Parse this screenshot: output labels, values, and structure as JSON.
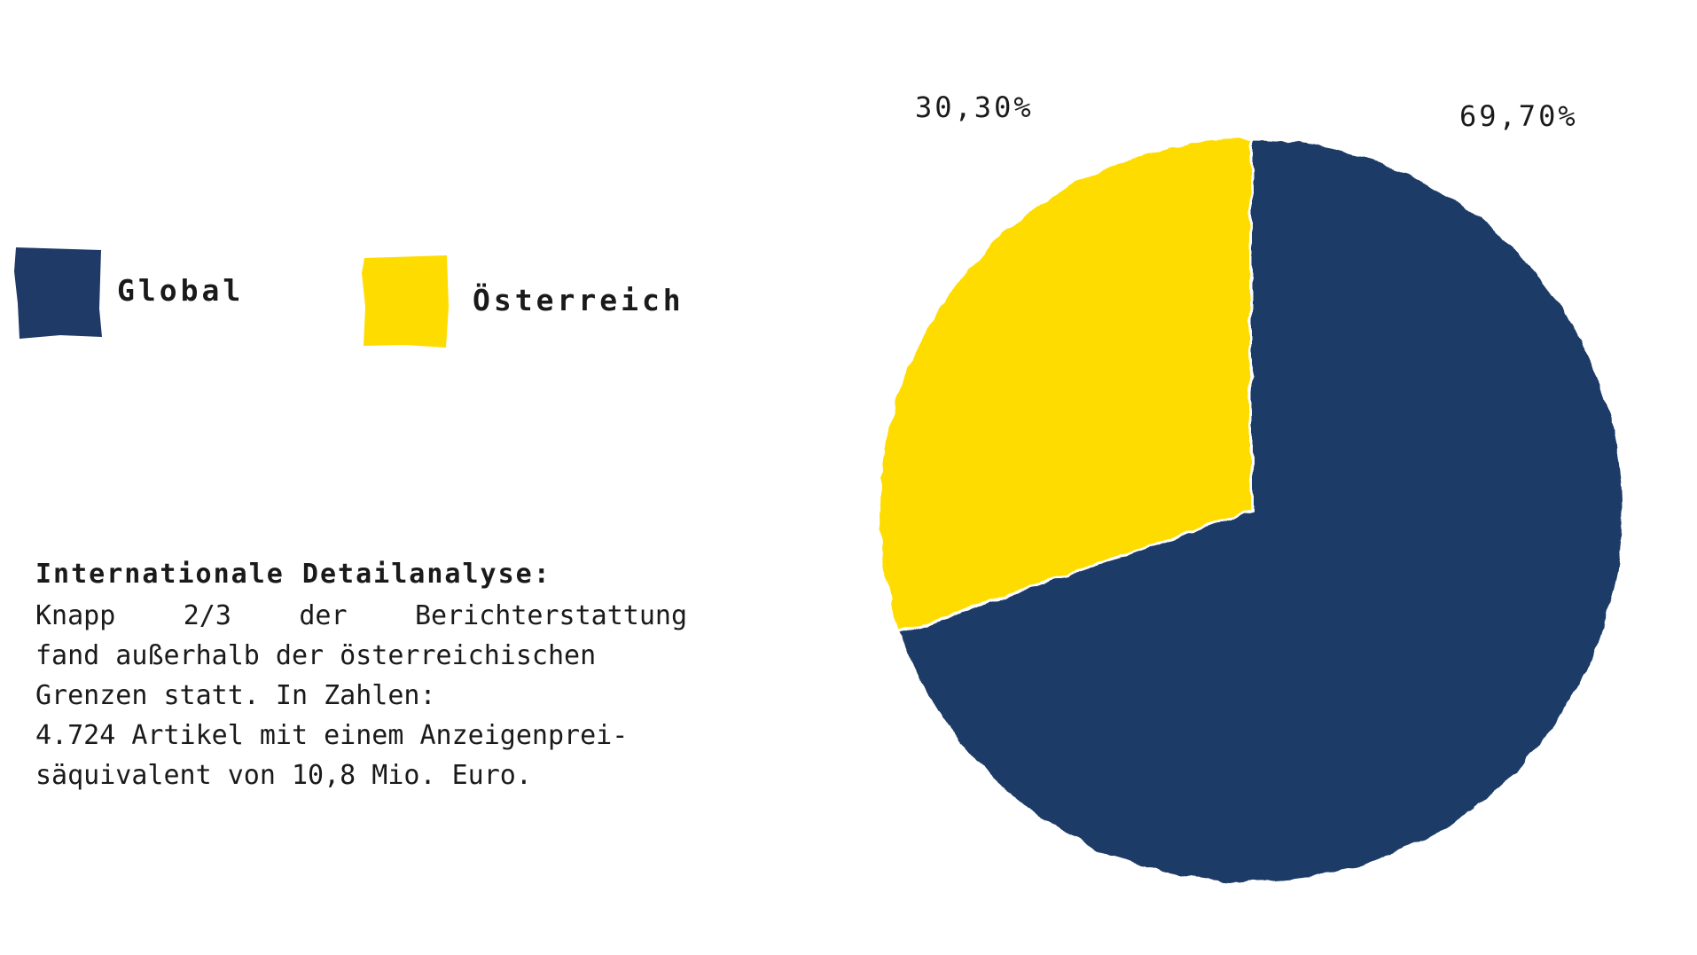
{
  "colors": {
    "global": "#1f3a66",
    "oesterreich": "#ffdc00",
    "text": "#1a1a1a",
    "background": "#ffffff"
  },
  "legend": {
    "global": "Global",
    "oesterreich": "Österreich"
  },
  "description": {
    "heading": "Internationale Detailanalyse:",
    "line1_words": [
      "Knapp",
      "2/3",
      "der",
      "Berichterstattung"
    ],
    "line2": "fand außerhalb der österreichischen",
    "line3": "Grenzen statt. In Zahlen:",
    "line4": "4.724 Artikel mit einem Anzeigenprei-",
    "line5": "säquivalent von 10,8 Mio. Euro."
  },
  "chart_data": {
    "type": "pie",
    "categories": [
      "Global",
      "Österreich"
    ],
    "values": [
      69.7,
      30.3
    ],
    "data_labels": [
      "69,70%",
      "30,30%"
    ],
    "start_angle_deg": 0,
    "direction": "clockwise",
    "legend_position": "left"
  }
}
